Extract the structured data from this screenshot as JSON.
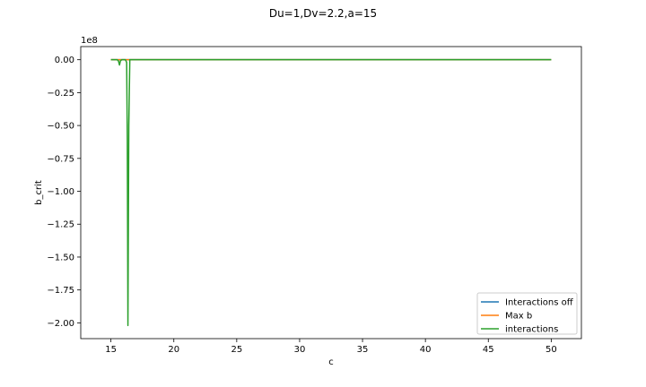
{
  "chart_data": {
    "type": "line",
    "title": "Du=1,Dv=2.2,a=15",
    "xlabel": "c",
    "ylabel": "b_crit",
    "y_offset_label": "1e8",
    "y_scale_factor": 100000000,
    "xlim": [
      12.6,
      52.4
    ],
    "ylim": [
      -2.12,
      0.1
    ],
    "xticks": [
      15,
      20,
      25,
      30,
      35,
      40,
      45,
      50
    ],
    "xtick_labels": [
      "15",
      "20",
      "25",
      "30",
      "35",
      "40",
      "45",
      "50"
    ],
    "yticks": [
      0.0,
      -0.25,
      -0.5,
      -0.75,
      -1.0,
      -1.25,
      -1.5,
      -1.75,
      -2.0
    ],
    "ytick_labels": [
      "0.00",
      "−0.25",
      "−0.50",
      "−0.75",
      "−1.00",
      "−1.25",
      "−1.50",
      "−1.75",
      "−2.00"
    ],
    "grid": false,
    "legend_position": "lower-right",
    "series": [
      {
        "name": "Interactions off",
        "color": "#1f77b4",
        "x": [
          15,
          50
        ],
        "y": [
          0,
          0
        ]
      },
      {
        "name": "Max b",
        "color": "#ff7f0e",
        "x": [
          15,
          50
        ],
        "y": [
          0,
          0
        ]
      },
      {
        "name": "interactions",
        "color": "#2ca02c",
        "x": [
          15,
          15.5,
          15.6,
          15.68,
          15.75,
          15.85,
          16.15,
          16.25,
          16.3,
          16.35,
          16.42,
          16.5,
          50
        ],
        "y": [
          0,
          0,
          -0.01,
          -0.04,
          -0.01,
          0,
          0,
          -0.02,
          -0.6,
          -2.02,
          -0.5,
          0,
          0
        ]
      }
    ]
  }
}
